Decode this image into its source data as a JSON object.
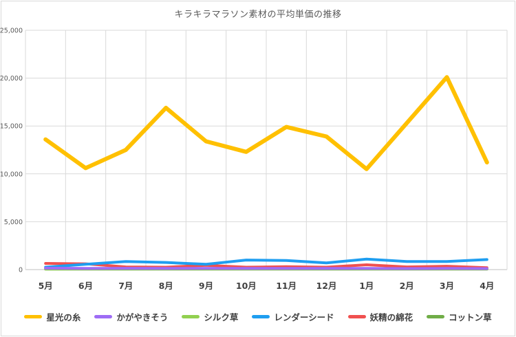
{
  "chart_data": {
    "type": "line",
    "title": "キラキラマラソン素材の平均単価の推移",
    "categories": [
      "5月",
      "6月",
      "7月",
      "8月",
      "9月",
      "10月",
      "11月",
      "12月",
      "1月",
      "2月",
      "3月",
      "4月"
    ],
    "ylim": [
      0,
      25000
    ],
    "yticks": [
      "0",
      "5,000",
      "10,000",
      "15,000",
      "20,000",
      "25,000"
    ],
    "ytick_values": [
      0,
      5000,
      10000,
      15000,
      20000,
      25000
    ],
    "grid": true,
    "legend_position": "bottom",
    "series": [
      {
        "name": "星光の糸",
        "color": "#ffc000",
        "values": [
          13600,
          10600,
          12500,
          16900,
          13400,
          12300,
          14900,
          13900,
          10500,
          15300,
          20100,
          11200
        ]
      },
      {
        "name": "かがやきそう",
        "color": "#9e6cf5",
        "values": [
          150,
          130,
          140,
          120,
          140,
          130,
          120,
          130,
          120,
          110,
          120,
          110
        ]
      },
      {
        "name": "シルク草",
        "color": "#92d050",
        "values": [
          100,
          90,
          100,
          90,
          100,
          90,
          90,
          100,
          90,
          90,
          90,
          90
        ]
      },
      {
        "name": "レンダーシード",
        "color": "#1e9ef0",
        "values": [
          250,
          550,
          850,
          750,
          550,
          1000,
          950,
          700,
          1100,
          850,
          850,
          1050
        ]
      },
      {
        "name": "妖精の綿花",
        "color": "#f0504f",
        "values": [
          650,
          600,
          280,
          250,
          450,
          250,
          300,
          250,
          500,
          280,
          350,
          200
        ]
      },
      {
        "name": "コットン草",
        "color": "#70ad47",
        "values": [
          60,
          50,
          60,
          50,
          60,
          50,
          50,
          60,
          50,
          50,
          50,
          50
        ]
      }
    ]
  }
}
